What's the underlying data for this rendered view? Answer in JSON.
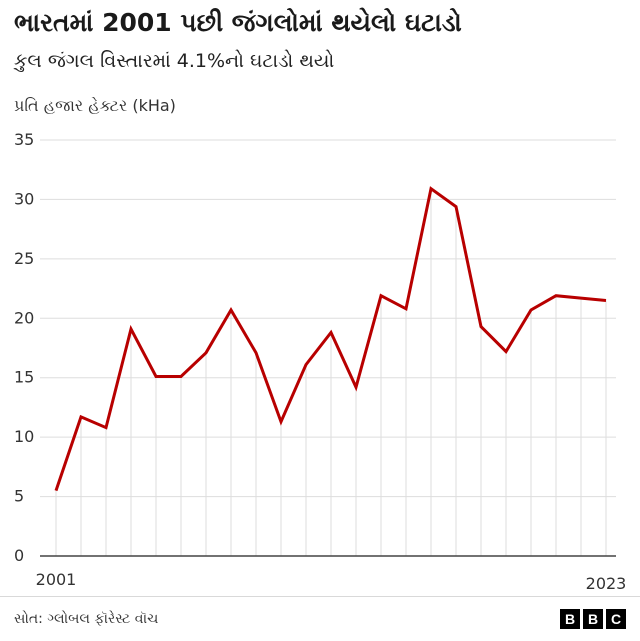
{
  "header": {
    "title": "ભારતમાં 2001 પછી જંગલોમાં થયેલો ઘટાડો",
    "subtitle": "કુલ જંગલ વિસ્તારમાં 4.1%નો ઘટાડો થયો"
  },
  "footer": {
    "source": "સોત: ગ્લોબલ ફૉરેસ્ટ વૉચ",
    "logo_letters": [
      "B",
      "B",
      "C"
    ]
  },
  "colors": {
    "line": "#b80000",
    "grid": "#dddddd",
    "baseline": "#444444",
    "text": "#333333"
  },
  "chart_data": {
    "type": "line",
    "ylabel": "પ્રતિ હજાર હેક્ટર (kHa)",
    "xlabel": "",
    "ylim": [
      0,
      35
    ],
    "yticks": [
      0,
      5,
      10,
      15,
      20,
      25,
      30,
      35
    ],
    "xlim": [
      2001,
      2023
    ],
    "xtick_labels": [
      "2001",
      "2023"
    ],
    "grid": "vertical-per-year-and-horizontal",
    "legend": "none",
    "series": [
      {
        "x": [
          2001,
          2002,
          2003,
          2004,
          2005,
          2006,
          2007,
          2008,
          2009,
          2010,
          2011,
          2012,
          2013,
          2014,
          2015,
          2016,
          2017,
          2018,
          2019,
          2020,
          2021,
          2022,
          2023
        ],
        "values": [
          5.5,
          11.7,
          10.8,
          19.1,
          15.1,
          15.1,
          17.1,
          20.7,
          17.1,
          11.3,
          16.1,
          18.8,
          14.2,
          21.9,
          20.8,
          30.9,
          29.4,
          19.3,
          17.2,
          20.7,
          21.9,
          21.7,
          21.5
        ]
      }
    ]
  }
}
